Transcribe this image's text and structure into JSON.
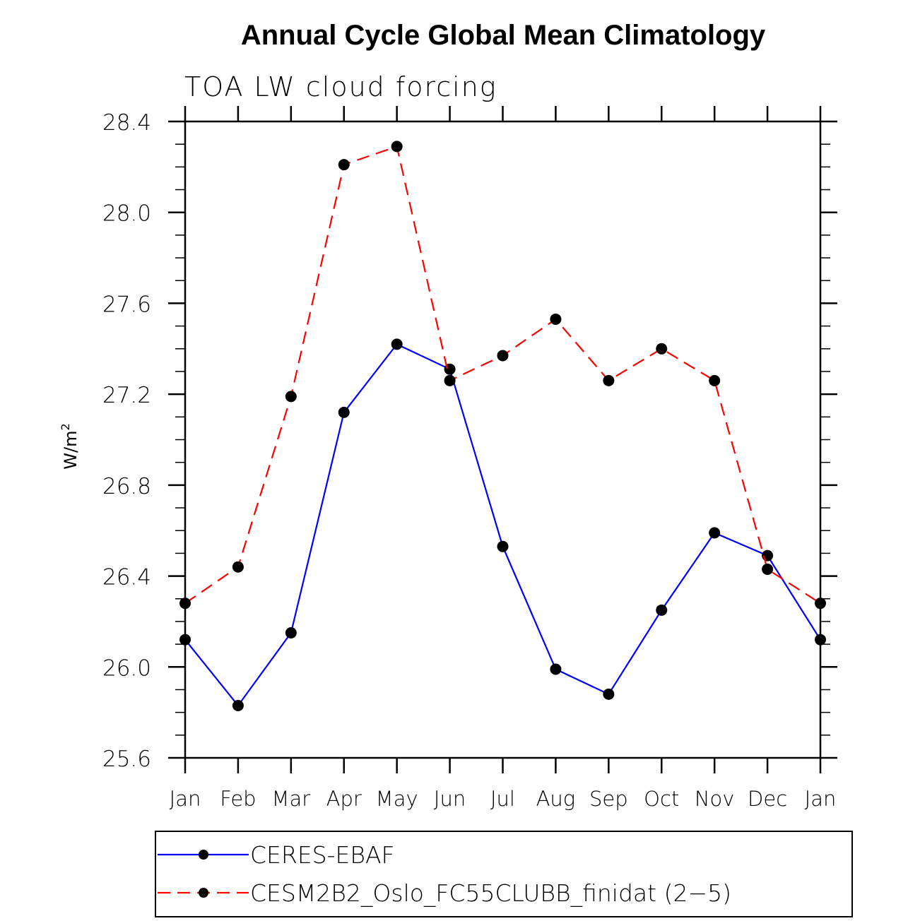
{
  "chart_data": {
    "type": "line",
    "title": "Annual Cycle Global Mean Climatology",
    "subtitle": "TOA LW cloud forcing",
    "xlabel": "",
    "ylabel": "W/m",
    "ylabel_superscript": "2",
    "categories": [
      "Jan",
      "Feb",
      "Mar",
      "Apr",
      "May",
      "Jun",
      "Jul",
      "Aug",
      "Sep",
      "Oct",
      "Nov",
      "Dec",
      "Jan"
    ],
    "ylim": [
      25.6,
      28.4
    ],
    "yticks": [
      25.6,
      26.0,
      26.4,
      26.8,
      27.2,
      27.6,
      28.0,
      28.4
    ],
    "ytick_labels": [
      "25.6",
      "26.0",
      "26.4",
      "26.8",
      "27.2",
      "27.6",
      "28.0",
      "28.4"
    ],
    "y_minor_step": 0.1,
    "grid": false,
    "legend_position": "bottom",
    "series": [
      {
        "name": "CERES-EBAF",
        "color": "#0000ff",
        "line_style": "solid",
        "marker": "filled-circle",
        "marker_color": "#000000",
        "values": [
          26.12,
          25.83,
          26.15,
          27.12,
          27.42,
          27.31,
          26.53,
          25.99,
          25.88,
          26.25,
          26.59,
          26.49,
          26.12
        ]
      },
      {
        "name": "CESM2B2_Oslo_FC55CLUBB_finidat (2−5)",
        "color": "#ff0000",
        "line_style": "dashed",
        "marker": "filled-circle",
        "marker_color": "#000000",
        "values": [
          26.28,
          26.44,
          27.19,
          28.21,
          28.29,
          27.26,
          27.37,
          27.53,
          27.26,
          27.4,
          27.26,
          26.43,
          26.28
        ]
      }
    ]
  }
}
